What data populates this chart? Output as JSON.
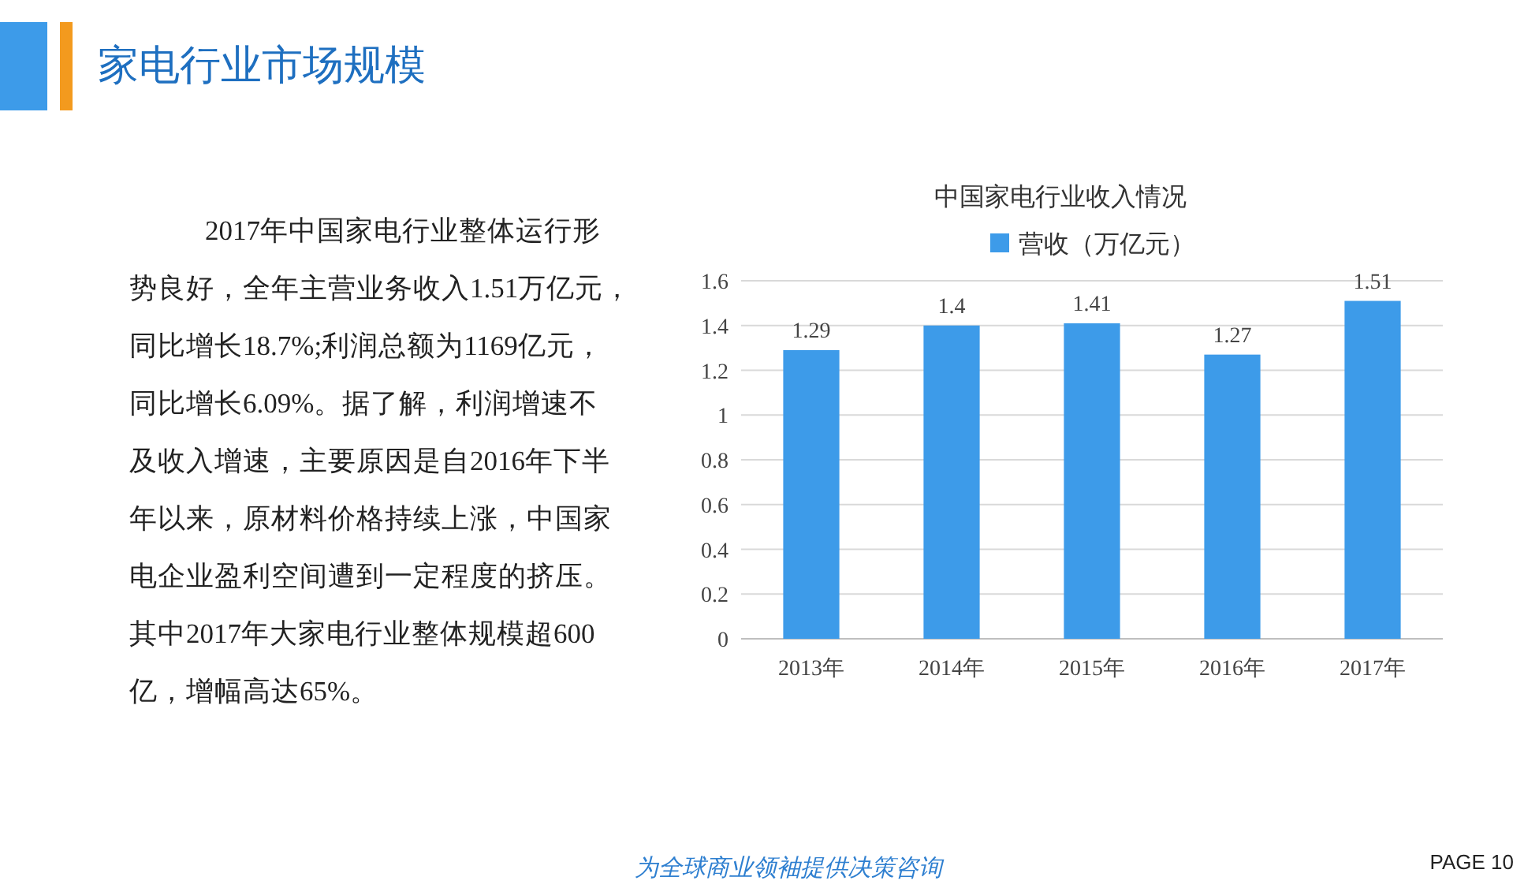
{
  "chart_data": [
    {
      "type": "other",
      "title": "家电行业市场规模",
      "annotations": [
        "2017年中国家电行业整体运行形",
        "势良好，全年主营业务收入1.51万亿元，",
        "同比增长18.7%;利润总额为1169亿元，",
        "同比增长6.09%。据了解，利润增速不",
        "及收入增速，主要原因是自2016年下半",
        "年以来，原材料价格持续上涨，中国家",
        "电企业盈利空间遭到一定程度的挤压。",
        "其中2017年大家电行业整体规模超600",
        "亿，增幅高达65%。",
        "为全球商业领袖提供决策咨询",
        "PAGE 10"
      ]
    },
    {
      "type": "bar",
      "title": "中国家电行业收入情况",
      "categories": [
        "2013年",
        "2014年",
        "2015年",
        "2016年",
        "2017年"
      ],
      "series": [
        {
          "name": "营收（万亿元）",
          "color": "#3d9be9",
          "values": [
            1.29,
            1.4,
            1.41,
            1.27,
            1.51
          ]
        }
      ],
      "ylim": [
        0,
        1.6
      ],
      "yticks": [
        0,
        0.2,
        0.4,
        0.6,
        0.8,
        1,
        1.2,
        1.4,
        1.6
      ],
      "grid": "y",
      "legend": "top",
      "data_labels": true
    }
  ]
}
